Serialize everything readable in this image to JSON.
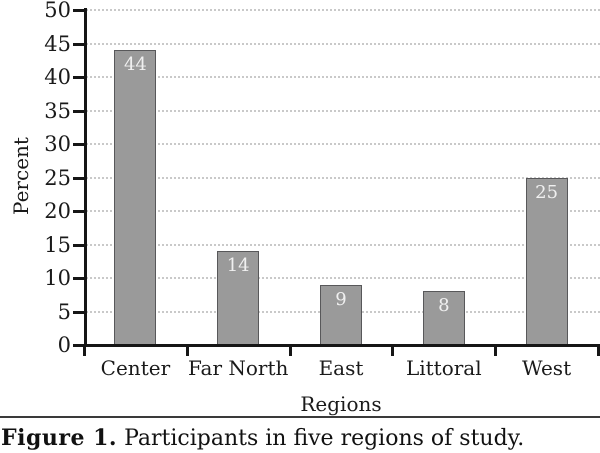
{
  "figure": {
    "caption_label": "Figure 1.",
    "caption_text": "Participants in five regions of study."
  },
  "chart_data": {
    "type": "bar",
    "title": "",
    "xlabel": "Regions",
    "ylabel": "Percent",
    "categories": [
      "Center",
      "Far North",
      "East",
      "Littoral",
      "West"
    ],
    "values": [
      44,
      14,
      9,
      8,
      25
    ],
    "bar_value_labels": [
      "44",
      "14",
      "9",
      "8",
      "25"
    ],
    "ylim": [
      0,
      50
    ],
    "yticks": [
      0,
      5,
      10,
      15,
      20,
      25,
      30,
      35,
      40,
      45,
      50
    ],
    "grid": "horizontal-dotted",
    "legend": "none",
    "colors": {
      "bar_fill": "#9a9a9a",
      "bar_border": "#58585a",
      "bar_value_text": "#f0f0f0",
      "axis": "#161616",
      "gridline": "#c9c9c9"
    }
  }
}
